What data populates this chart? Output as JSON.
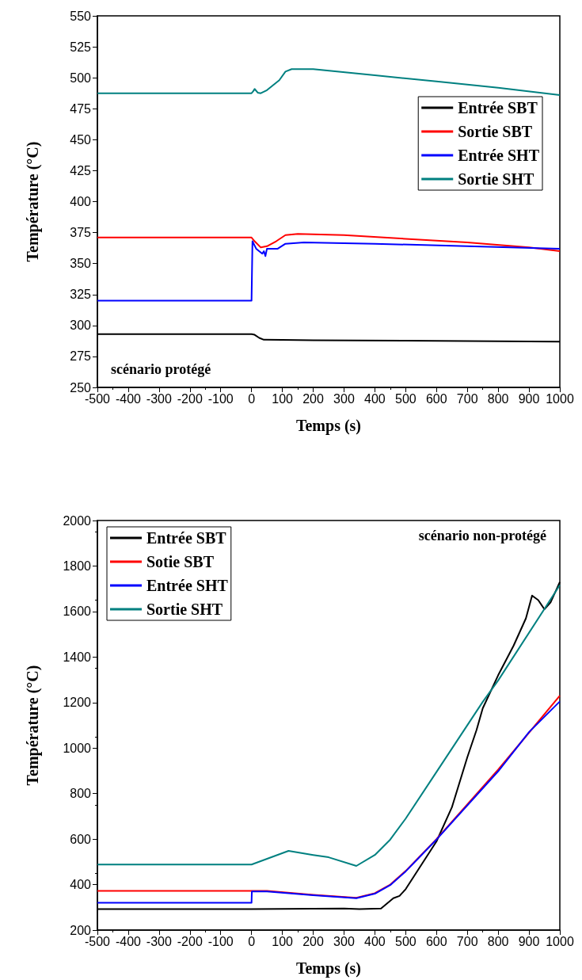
{
  "chart_data": [
    {
      "type": "line",
      "xlabel": "Temps (s)",
      "ylabel": "Température (°C)",
      "xlim": [
        -500,
        1000
      ],
      "xticks": [
        -500,
        -400,
        -300,
        -200,
        -100,
        0,
        100,
        200,
        300,
        400,
        500,
        600,
        700,
        800,
        900,
        1000
      ],
      "ylim": [
        250,
        550
      ],
      "yticks": [
        250,
        275,
        300,
        325,
        350,
        375,
        400,
        425,
        450,
        475,
        500,
        525,
        550
      ],
      "grid": false,
      "legend": "right",
      "marker": "none",
      "line_style": "solid",
      "annotations": [
        "scénario protégé"
      ],
      "series": [
        {
          "name": "Entrée SBT",
          "color": "#000000",
          "x": [
            -500,
            0,
            10,
            25,
            40,
            100,
            200,
            500,
            1000
          ],
          "values": [
            293,
            293,
            292.5,
            290,
            288.5,
            288.3,
            288,
            287.8,
            287
          ]
        },
        {
          "name": "Sortie SBT",
          "color": "#ff0000",
          "x": [
            -500,
            0,
            10,
            30,
            50,
            80,
            110,
            150,
            300,
            500,
            700,
            900,
            1000
          ],
          "values": [
            371,
            371,
            368,
            363,
            364,
            368,
            373,
            374,
            373,
            370,
            367,
            363,
            360
          ]
        },
        {
          "name": "Entrée SHT",
          "color": "#0000ff",
          "x": [
            -500,
            0,
            3,
            15,
            35,
            40,
            45,
            50,
            85,
            110,
            170,
            400,
            700,
            1000
          ],
          "values": [
            320,
            320,
            368,
            362,
            358,
            360,
            356,
            362,
            362,
            366,
            367,
            366,
            364,
            362
          ]
        },
        {
          "name": "Sortie SHT",
          "color": "#008080",
          "x": [
            -500,
            0,
            5,
            10,
            20,
            30,
            50,
            70,
            90,
            110,
            130,
            200,
            400,
            600,
            800,
            1000
          ],
          "values": [
            487.5,
            487.5,
            489,
            491,
            488,
            487.5,
            490,
            494,
            498,
            505,
            507,
            507,
            502,
            497,
            492,
            486
          ]
        }
      ]
    },
    {
      "type": "line",
      "xlabel": "Temps (s)",
      "ylabel": "Température (°C)",
      "xlim": [
        -500,
        1000
      ],
      "xticks": [
        -500,
        -400,
        -300,
        -200,
        -100,
        0,
        100,
        200,
        300,
        400,
        500,
        600,
        700,
        800,
        900,
        1000
      ],
      "ylim": [
        200,
        2000
      ],
      "yticks": [
        200,
        400,
        600,
        800,
        1000,
        1200,
        1400,
        1600,
        1800,
        2000
      ],
      "grid": false,
      "legend": "top left",
      "marker": "none",
      "line_style": "solid",
      "annotations": [
        "scénario non-protégé"
      ],
      "series": [
        {
          "name": "Entrée SBT",
          "color": "#000000",
          "x": [
            -500,
            0,
            300,
            350,
            420,
            460,
            480,
            500,
            600,
            650,
            700,
            730,
            750,
            800,
            850,
            890,
            910,
            930,
            950,
            970,
            1000
          ],
          "values": [
            292,
            292,
            295,
            292,
            295,
            340,
            350,
            380,
            590,
            740,
            960,
            1080,
            1175,
            1320,
            1450,
            1570,
            1670,
            1650,
            1610,
            1640,
            1730
          ]
        },
        {
          "name": "Sotie SBT",
          "color": "#ff0000",
          "x": [
            -500,
            0,
            50,
            200,
            340,
            400,
            450,
            500,
            600,
            800,
            1000
          ],
          "values": [
            372,
            372,
            372,
            355,
            342,
            362,
            400,
            460,
            600,
            905,
            1230
          ]
        },
        {
          "name": "Entrée SHT",
          "color": "#0000ff",
          "x": [
            -500,
            0,
            1,
            50,
            200,
            340,
            400,
            450,
            500,
            600,
            800,
            900,
            1000
          ],
          "values": [
            320,
            320,
            370,
            370,
            353,
            340,
            360,
            398,
            458,
            598,
            898,
            1070,
            1205
          ]
        },
        {
          "name": "Sortie SHT",
          "color": "#008080",
          "x": [
            -500,
            0,
            120,
            200,
            250,
            340,
            400,
            450,
            500,
            600,
            750,
            800,
            1000
          ],
          "values": [
            488,
            488,
            548,
            530,
            520,
            482,
            530,
            598,
            690,
            895,
            1203,
            1297,
            1716
          ]
        }
      ]
    }
  ]
}
